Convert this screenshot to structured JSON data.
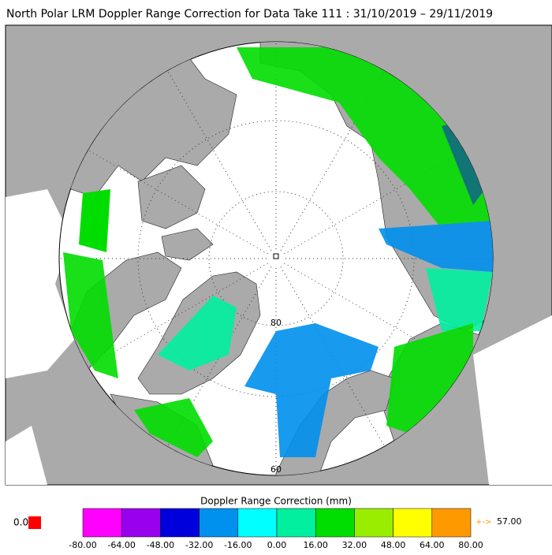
{
  "title": "North Polar LRM Doppler Range Correction for Data Take 111 : 31/10/2019 – 29/11/2019",
  "map": {
    "latitude_labels": [
      "80",
      "60"
    ]
  },
  "colorbar": {
    "title": "Doppler Range Correction (mm)",
    "tick_labels": [
      "-80.00",
      "-64.00",
      "-48.00",
      "-32.00",
      "-16.00",
      "0.00",
      "16.00",
      "32.00",
      "48.00",
      "64.00",
      "80.00"
    ],
    "colors": [
      "#ff00ff",
      "#9900ee",
      "#0000dd",
      "#0090ee",
      "#00ffff",
      "#00f0a0",
      "#00dd00",
      "#99ee00",
      "#ffff00",
      "#ff9900"
    ],
    "under_label": "0.0",
    "under_color": "#ff0000",
    "over_arrow": "+->",
    "over_label": "57.00",
    "over_color": "#ff9900"
  }
}
